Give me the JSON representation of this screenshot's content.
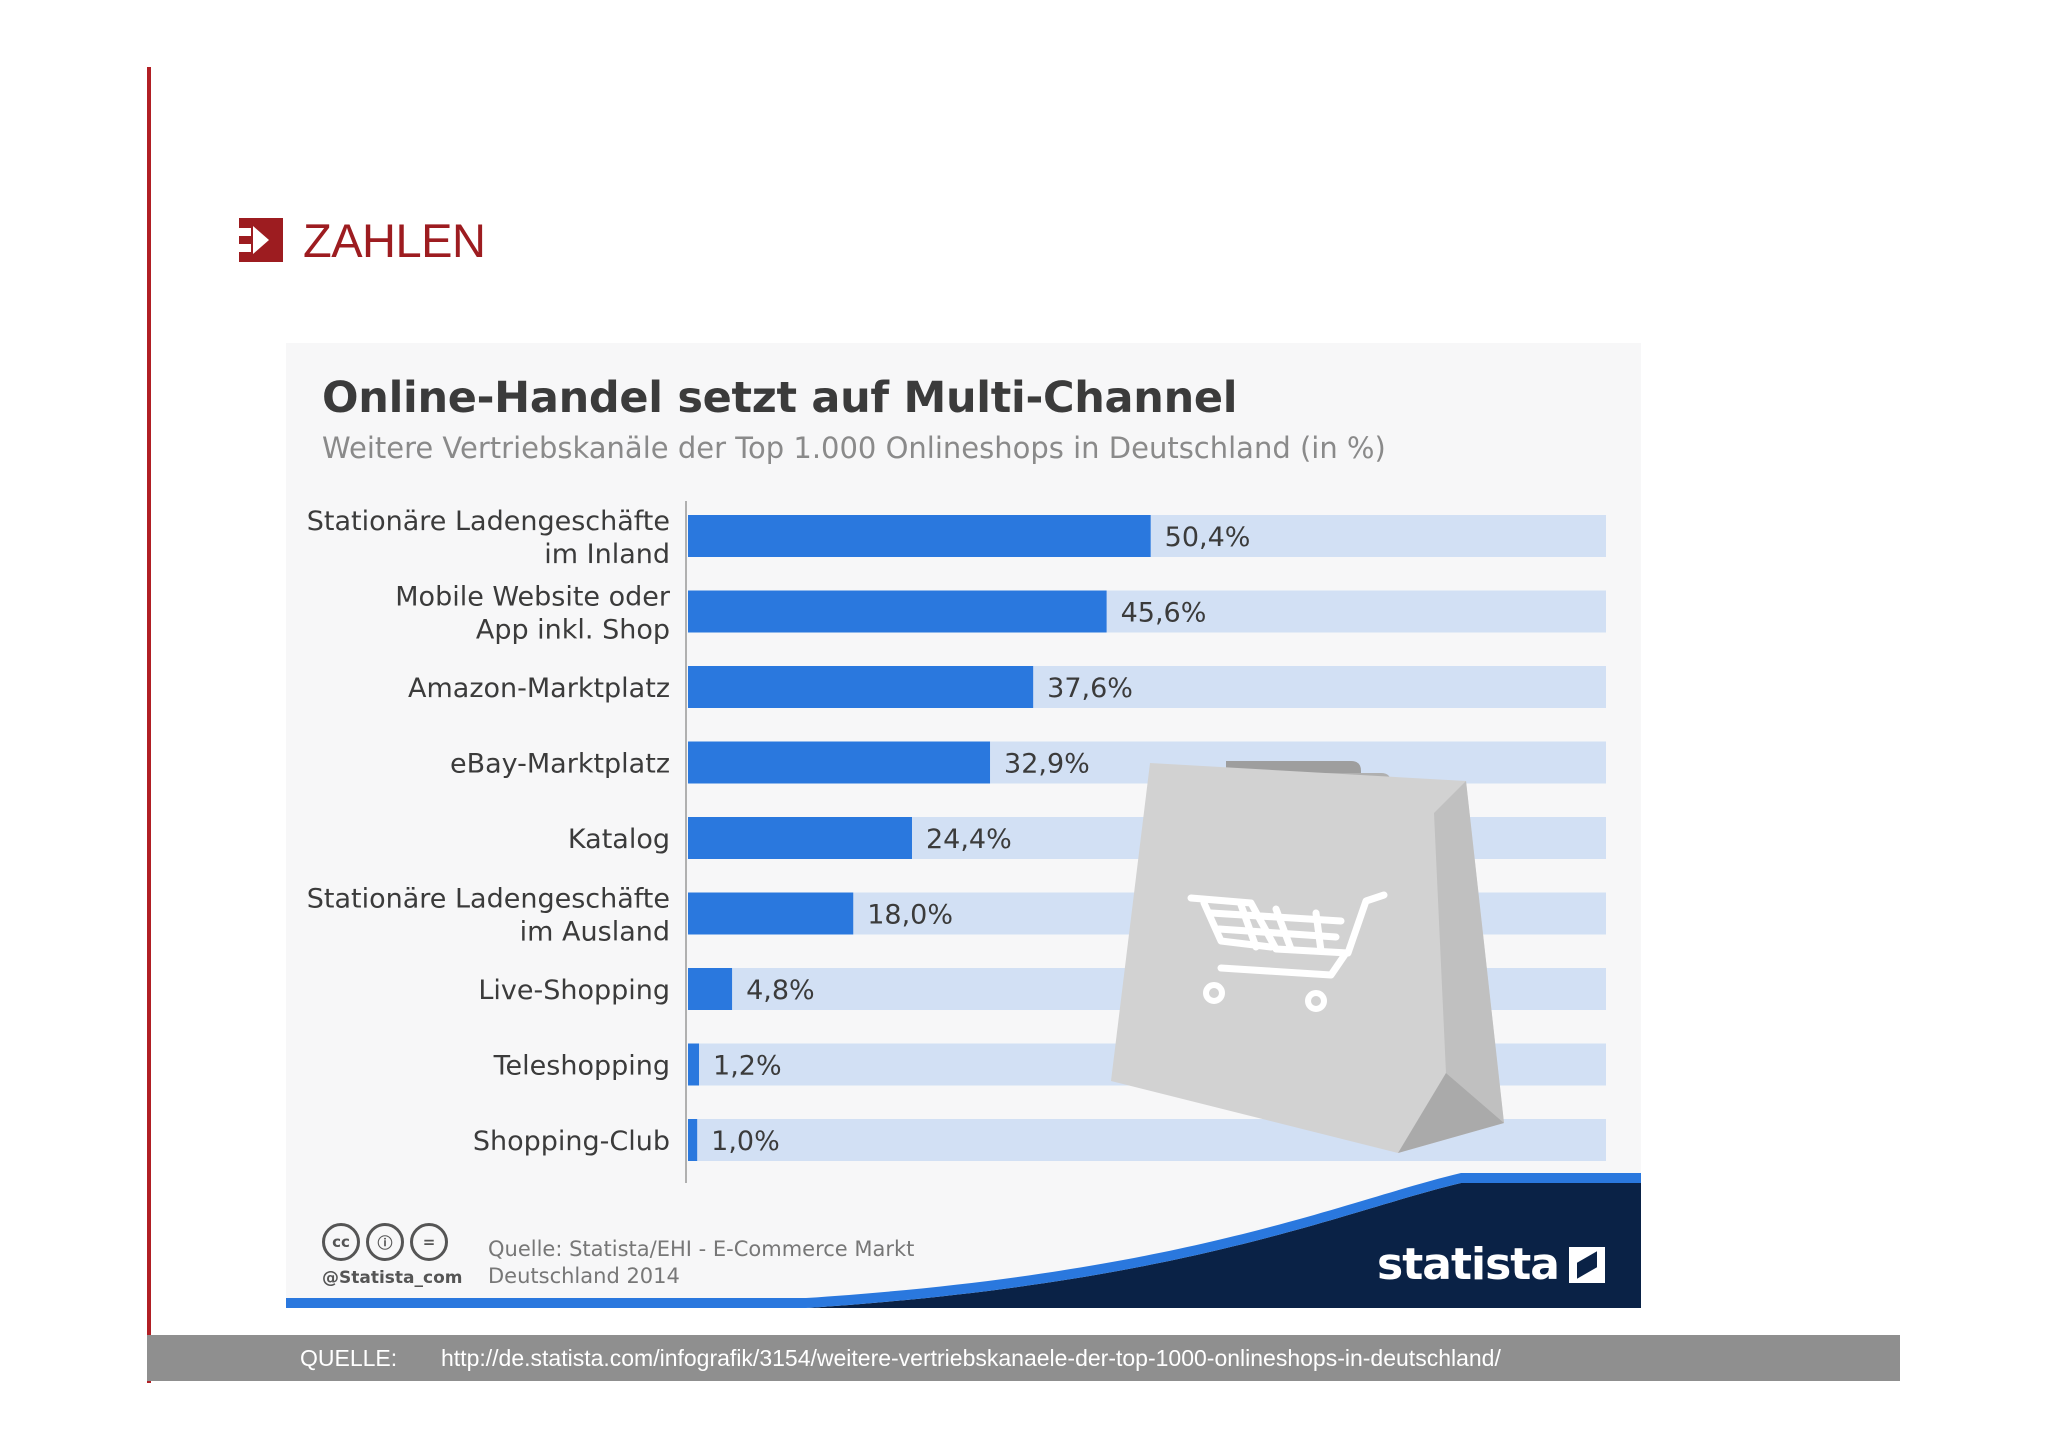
{
  "section": {
    "title": "ZAHLEN"
  },
  "chart_data": {
    "type": "bar",
    "orientation": "horizontal",
    "title": "Online-Handel setzt auf Multi-Channel",
    "subtitle": "Weitere Vertriebskanäle der Top 1.000 Onlineshops in Deutschland (in %)",
    "categories": [
      [
        "Stationäre Ladengeschäfte",
        "im Inland"
      ],
      [
        "Mobile Website oder",
        "App inkl. Shop"
      ],
      [
        "Amazon-Marktplatz"
      ],
      [
        "eBay-Marktplatz"
      ],
      [
        "Katalog"
      ],
      [
        "Stationäre Ladengeschäfte",
        "im Ausland"
      ],
      [
        "Live-Shopping"
      ],
      [
        "Teleshopping"
      ],
      [
        "Shopping-Club"
      ]
    ],
    "values": [
      50.4,
      45.6,
      37.6,
      32.9,
      24.4,
      18.0,
      4.8,
      1.2,
      1.0
    ],
    "value_labels": [
      "50,4%",
      "45,6%",
      "37,6%",
      "32,9%",
      "24,4%",
      "18,0%",
      "4,8%",
      "1,2%",
      "1,0%"
    ],
    "xlim": [
      0,
      100
    ],
    "colors": {
      "bar": "#2a78de",
      "track": "#d2e0f4",
      "text": "#3b3b3b"
    }
  },
  "footer": {
    "license_icons": [
      "cc",
      "by",
      "nd"
    ],
    "license_icon_labels": [
      "cc",
      "ⓘ",
      "="
    ],
    "handle": "@Statista_com",
    "source_line1": "Quelle: Statista/EHI - E-Commerce Markt",
    "source_line2": "Deutschland 2014",
    "brand": "statista",
    "brand_color": "#0a2246"
  },
  "source_bar": {
    "label": "QUELLE:",
    "url": "http://de.statista.com/infografik/3154/weitere-vertriebskanaele-der-top-1000-onlineshops-in-deutschland/"
  },
  "accent_color": "#b11f24",
  "decoration": {
    "icon": "shopping-bag-icon"
  }
}
